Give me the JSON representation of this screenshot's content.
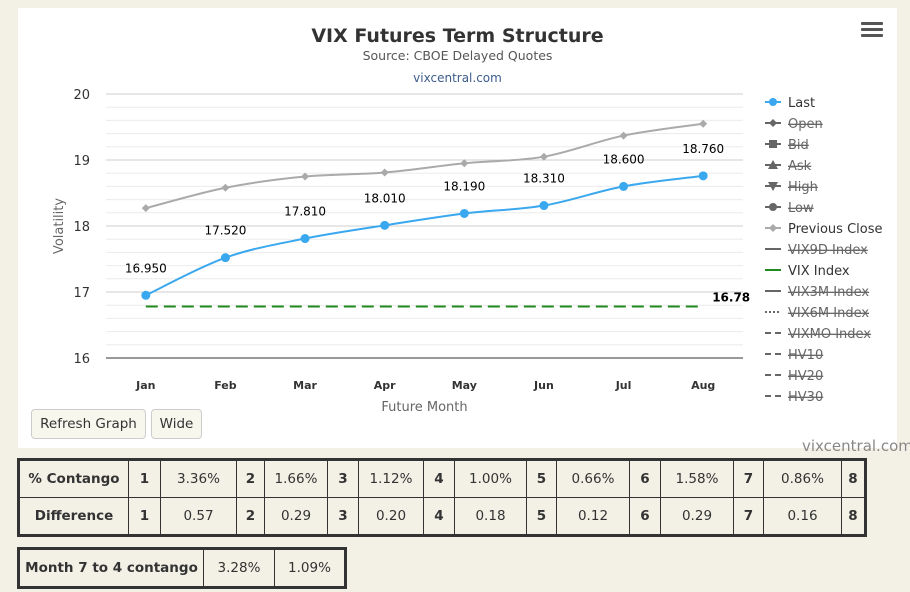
{
  "header": {
    "title": "VIX Futures Term Structure",
    "subtitle": "Source: CBOE Delayed Quotes",
    "link": "vixcentral.com"
  },
  "chart_data": {
    "type": "line",
    "categories": [
      "Jan",
      "Feb",
      "Mar",
      "Apr",
      "May",
      "Jun",
      "Jul",
      "Aug"
    ],
    "xlabel": "Future Month",
    "ylabel": "Volatility",
    "ylim": [
      16,
      20
    ],
    "yticks": [
      16,
      17,
      18,
      19,
      20
    ],
    "grid": true,
    "legend_position": "right",
    "series": [
      {
        "name": "Last",
        "values": [
          16.95,
          17.52,
          17.81,
          18.01,
          18.19,
          18.31,
          18.6,
          18.76
        ],
        "labels": [
          "16.950",
          "17.520",
          "17.810",
          "18.010",
          "18.190",
          "18.310",
          "18.600",
          "18.760"
        ],
        "color": "#3aa8ee"
      },
      {
        "name": "Previous Close",
        "values": [
          18.27,
          18.58,
          18.75,
          18.81,
          18.95,
          19.05,
          19.37,
          19.55
        ],
        "color": "#aaaaaa"
      },
      {
        "name": "VIX Index",
        "value": 16.78,
        "label": "16.78",
        "color": "#1f8a1f"
      }
    ],
    "legend": [
      {
        "name": "Last",
        "enabled": true
      },
      {
        "name": "Open",
        "enabled": false
      },
      {
        "name": "Bid",
        "enabled": false
      },
      {
        "name": "Ask",
        "enabled": false
      },
      {
        "name": "High",
        "enabled": false
      },
      {
        "name": "Low",
        "enabled": false
      },
      {
        "name": "Previous Close",
        "enabled": true
      },
      {
        "name": "VIX9D Index",
        "enabled": false
      },
      {
        "name": "VIX Index",
        "enabled": true
      },
      {
        "name": "VIX3M Index",
        "enabled": false
      },
      {
        "name": "VIX6M Index",
        "enabled": false
      },
      {
        "name": "VIXMO Index",
        "enabled": false
      },
      {
        "name": "HV10",
        "enabled": false
      },
      {
        "name": "HV20",
        "enabled": false
      },
      {
        "name": "HV30",
        "enabled": false
      }
    ]
  },
  "buttons": {
    "refresh": "Refresh Graph",
    "wide": "Wide"
  },
  "watermark": "vixcentral.com",
  "contango_table": {
    "label": "% Contango",
    "cells": [
      [
        "1",
        "3.36%"
      ],
      [
        "2",
        "1.66%"
      ],
      [
        "3",
        "1.12%"
      ],
      [
        "4",
        "1.00%"
      ],
      [
        "5",
        "0.66%"
      ],
      [
        "6",
        "1.58%"
      ],
      [
        "7",
        "0.86%"
      ],
      [
        "8",
        ""
      ]
    ]
  },
  "difference_table": {
    "label": "Difference",
    "cells": [
      [
        "1",
        "0.57"
      ],
      [
        "2",
        "0.29"
      ],
      [
        "3",
        "0.20"
      ],
      [
        "4",
        "0.18"
      ],
      [
        "5",
        "0.12"
      ],
      [
        "6",
        "0.29"
      ],
      [
        "7",
        "0.16"
      ],
      [
        "8",
        ""
      ]
    ]
  },
  "month_table": {
    "label": "Month 7 to 4 contango",
    "values": [
      "3.28%",
      "1.09%"
    ]
  }
}
